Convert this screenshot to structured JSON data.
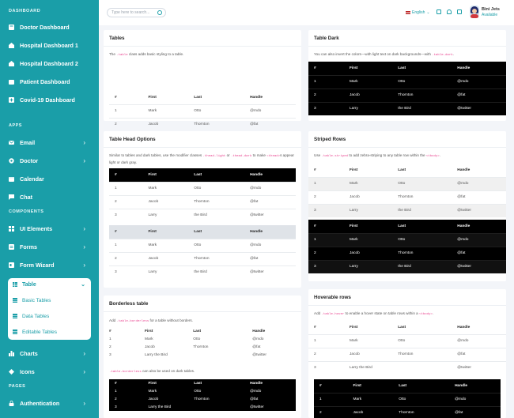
{
  "sidebar": {
    "dashboard_title": "DASHBOARD",
    "dashboards": [
      "Doctor Dashboard",
      "Hospital Dashboard 1",
      "Hospital Dashboard 2",
      "Patient Dashboard",
      "Covid-19 Dashboard"
    ],
    "apps_title": "APPS",
    "apps": [
      "Email",
      "Doctor",
      "Calendar",
      "Chat"
    ],
    "components_title": "COMPONENTS",
    "components": [
      "UI Elements",
      "Forms",
      "Form Wizard"
    ],
    "table_menu": {
      "label": "Table",
      "items": [
        "Basic Tables",
        "Data Tables",
        "Editable Tables"
      ]
    },
    "more": [
      "Charts",
      "Icons"
    ],
    "pages_title": "PAGES",
    "pages": [
      "Authentication"
    ]
  },
  "topbar": {
    "search_placeholder": "Type here to search...",
    "language": "English",
    "user_name": "Bini Jets",
    "user_status": "Available"
  },
  "headers": [
    "#",
    "First",
    "Last",
    "Handle"
  ],
  "rows": [
    [
      "1",
      "Mark",
      "Otto",
      "@mdo"
    ],
    [
      "2",
      "Jacob",
      "Thornton",
      "@fat"
    ],
    [
      "3",
      "Larry",
      "the Bird",
      "@twitter"
    ]
  ],
  "borderless_rows": [
    [
      "1",
      "Mark",
      "Otto",
      "@mdo"
    ],
    [
      "2",
      "Jacob",
      "Thornton",
      "@fat"
    ],
    [
      "3",
      "Larry the Bird",
      "",
      "@twitter"
    ]
  ],
  "hover_rows": [
    [
      "1",
      "Mark",
      "Otto",
      "@mdo"
    ],
    [
      "2",
      "Jacob",
      "Thornton",
      "@fat"
    ],
    [
      "3",
      "Larry the Bird",
      "",
      "@twitter"
    ]
  ],
  "cards": {
    "tables": {
      "title": "Tables",
      "desc_pre": "The ",
      "desc_code": ".table",
      "desc_post": " class adds basic styling to a table."
    },
    "table_dark": {
      "title": "Table Dark",
      "desc_pre": "You can also invert the colors—with light text on dark backgrounds—with ",
      "desc_code": ".table-dark",
      "desc_post": "."
    },
    "head_options": {
      "title": "Table Head Options",
      "desc_pre": "Similar to tables and dark tables, use the modifier classes ",
      "desc_code": ".thead-light",
      "desc_mid": " or ",
      "desc_code2": ".thead-dark",
      "desc_mid2": " to make ",
      "desc_code3": "<thead>",
      "desc_post": "s appear light or dark gray."
    },
    "striped": {
      "title": "Striped Rows",
      "desc_pre": "Use ",
      "desc_code": ".table-striped",
      "desc_mid": " to add zebra-striping to any table row within the ",
      "desc_code2": "<tbody>",
      "desc_post": "."
    },
    "borderless": {
      "title": "Borderless table",
      "desc_pre": "Add ",
      "desc_code": ".table-borderless",
      "desc_post": " for a table without borders.",
      "note_code": ".table-borderless",
      "note_post": " can also be used on dark tables."
    },
    "hoverable": {
      "title": "Hoverable rows",
      "desc_pre": "Add ",
      "desc_code": ".table-hover",
      "desc_mid": " to enable a hover state on table rows within a ",
      "desc_code2": "<tbody>",
      "desc_post": "."
    }
  },
  "colors": {
    "sidebar": "#1a9ea8",
    "dark": "#000000",
    "code": "#e83e8c"
  },
  "icons": [
    "search-icon",
    "fullscreen-icon",
    "bell-icon",
    "mail-icon",
    "dashboard-icon",
    "chevron-right-icon",
    "chevron-down-icon",
    "table-icon"
  ]
}
